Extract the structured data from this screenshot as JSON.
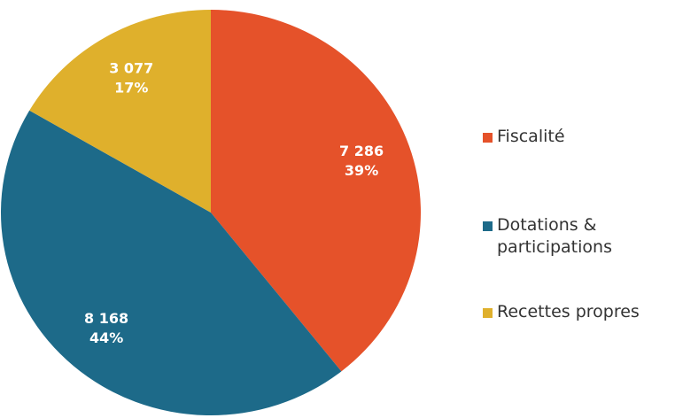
{
  "chart_data": {
    "type": "pie",
    "categories": [
      "Fiscalité",
      "Dotations & participations",
      "Recettes propres"
    ],
    "values": [
      7286,
      8168,
      3077
    ],
    "value_labels": [
      "7 286",
      "8 168",
      "3 077"
    ],
    "percent_labels": [
      "39%",
      "44%",
      "17%"
    ],
    "colors": [
      "#e5522a",
      "#1d6a89",
      "#dfb02c"
    ],
    "legend": "right"
  }
}
